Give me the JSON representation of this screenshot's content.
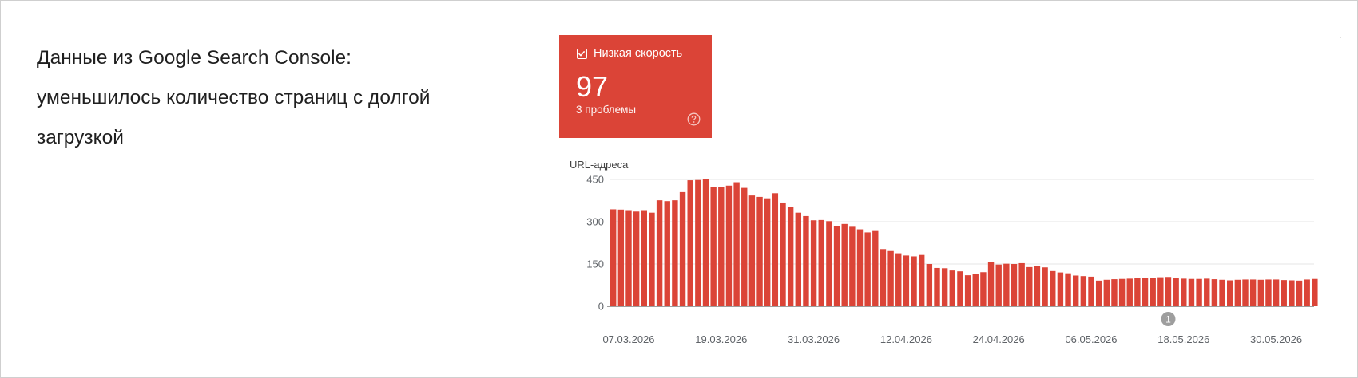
{
  "intro": {
    "line1": "Данные из Google Search Console:",
    "line2": "уменьшилось количество страниц с долгой",
    "line3": "загрузкой"
  },
  "card": {
    "checkbox_checked": true,
    "label": "Низкая скорость",
    "value": "97",
    "subtext": "3 проблемы",
    "help_icon": "help-circle-icon",
    "background": "#db4437"
  },
  "chart_data": {
    "type": "bar",
    "ylabel": "URL-адреса",
    "ylim": [
      0,
      450
    ],
    "y_ticks": [
      0,
      150,
      300,
      450
    ],
    "grid": true,
    "bar_color": "#db4437",
    "start_date": "05.03.2026",
    "x_tick_labels": [
      "07.03.2026",
      "19.03.2026",
      "31.03.2026",
      "12.04.2026",
      "24.04.2026",
      "06.05.2026",
      "18.05.2026",
      "30.05.2026"
    ],
    "values": [
      344,
      343,
      341,
      336,
      341,
      332,
      376,
      373,
      376,
      405,
      447,
      448,
      450,
      424,
      424,
      428,
      440,
      420,
      393,
      388,
      383,
      401,
      368,
      351,
      332,
      320,
      305,
      306,
      302,
      285,
      292,
      282,
      273,
      262,
      267,
      203,
      196,
      188,
      180,
      177,
      182,
      150,
      136,
      135,
      127,
      124,
      110,
      114,
      121,
      157,
      148,
      151,
      150,
      153,
      139,
      142,
      138,
      125,
      120,
      117,
      109,
      107,
      105,
      91,
      94,
      96,
      97,
      98,
      100,
      100,
      100,
      103,
      104,
      99,
      98,
      97,
      97,
      98,
      96,
      94,
      92,
      94,
      95,
      95,
      94,
      95,
      95,
      93,
      92,
      91,
      95,
      97
    ],
    "annotations": [
      {
        "label": "1",
        "date": "16.05.2026"
      }
    ]
  },
  "colors": {
    "accent": "#db4437",
    "grid": "#e6e6e6",
    "axis": "#9e9e9e",
    "tick_text": "#5f6368",
    "marker": "#9e9e9e"
  }
}
